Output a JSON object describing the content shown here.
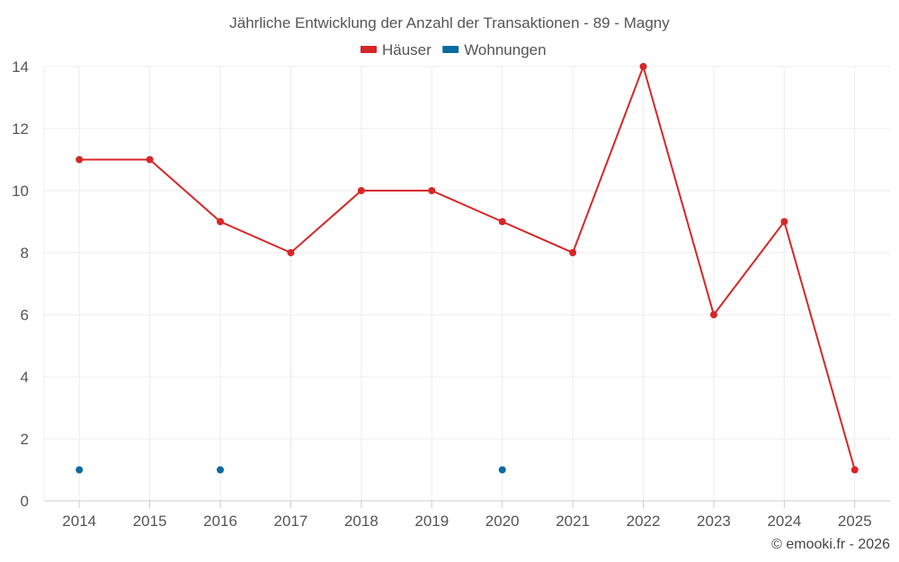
{
  "chart_data": {
    "type": "line",
    "title": "Jährliche Entwicklung der Anzahl der Transaktionen - 89 - Magny",
    "xlabel": "",
    "ylabel": "",
    "categories": [
      "2014",
      "2015",
      "2016",
      "2017",
      "2018",
      "2019",
      "2020",
      "2021",
      "2022",
      "2023",
      "2024",
      "2025"
    ],
    "ylim": [
      0,
      14
    ],
    "yticks": [
      0,
      2,
      4,
      6,
      8,
      10,
      12,
      14
    ],
    "grid": true,
    "legend_position": "top-center",
    "series": [
      {
        "name": "Häuser",
        "color": "#d62728",
        "values": [
          11,
          11,
          9,
          8,
          10,
          10,
          9,
          8,
          14,
          6,
          9,
          1
        ]
      },
      {
        "name": "Wohnungen",
        "color": "#0a6aa1",
        "values": [
          1,
          null,
          1,
          null,
          null,
          null,
          1,
          null,
          null,
          null,
          null,
          null
        ]
      }
    ]
  },
  "credit": "© emooki.fr - 2026"
}
